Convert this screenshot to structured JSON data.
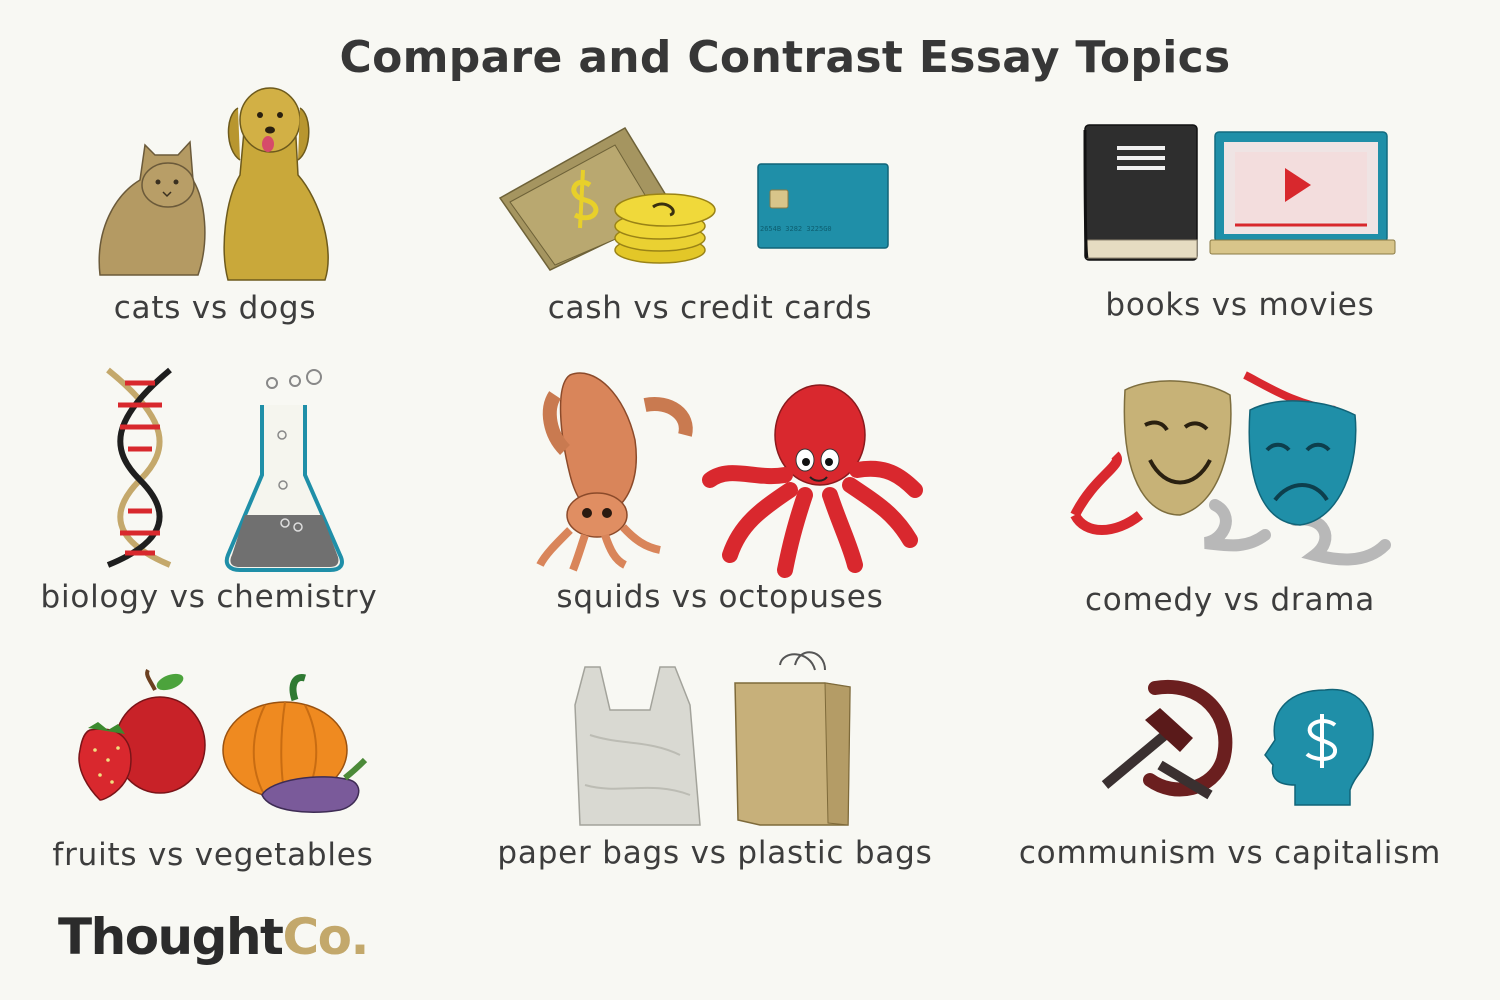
{
  "title": "Compare and Contrast Essay Topics",
  "topics": [
    {
      "label": "cats vs dogs",
      "icons": [
        "cat-icon",
        "dog-icon"
      ]
    },
    {
      "label": "cash vs credit cards",
      "icons": [
        "cash-icon",
        "credit-card-icon"
      ],
      "card_number": "2654B 3282 3225G0"
    },
    {
      "label": "books vs movies",
      "icons": [
        "book-icon",
        "laptop-video-icon"
      ]
    },
    {
      "label": "biology vs chemistry",
      "icons": [
        "dna-icon",
        "flask-icon"
      ]
    },
    {
      "label": "squids vs octopuses",
      "icons": [
        "squid-icon",
        "octopus-icon"
      ]
    },
    {
      "label": "comedy vs drama",
      "icons": [
        "comedy-mask-icon",
        "tragedy-mask-icon"
      ]
    },
    {
      "label": "fruits vs vegetables",
      "icons": [
        "apple-strawberry-icon",
        "pumpkin-eggplant-icon"
      ]
    },
    {
      "label": "paper bags vs plastic bags",
      "icons": [
        "plastic-bag-icon",
        "paper-bag-icon"
      ]
    },
    {
      "label": "communism vs capitalism",
      "icons": [
        "hammer-sickle-icon",
        "dollar-head-icon"
      ]
    }
  ],
  "logo": {
    "part1": "Thought",
    "part2": "Co."
  },
  "colors": {
    "background": "#f8f8f3",
    "title": "#373737",
    "text": "#3d3d3d",
    "gold": "#c3a86b",
    "teal": "#1f8fa8",
    "red": "#d8282d"
  }
}
